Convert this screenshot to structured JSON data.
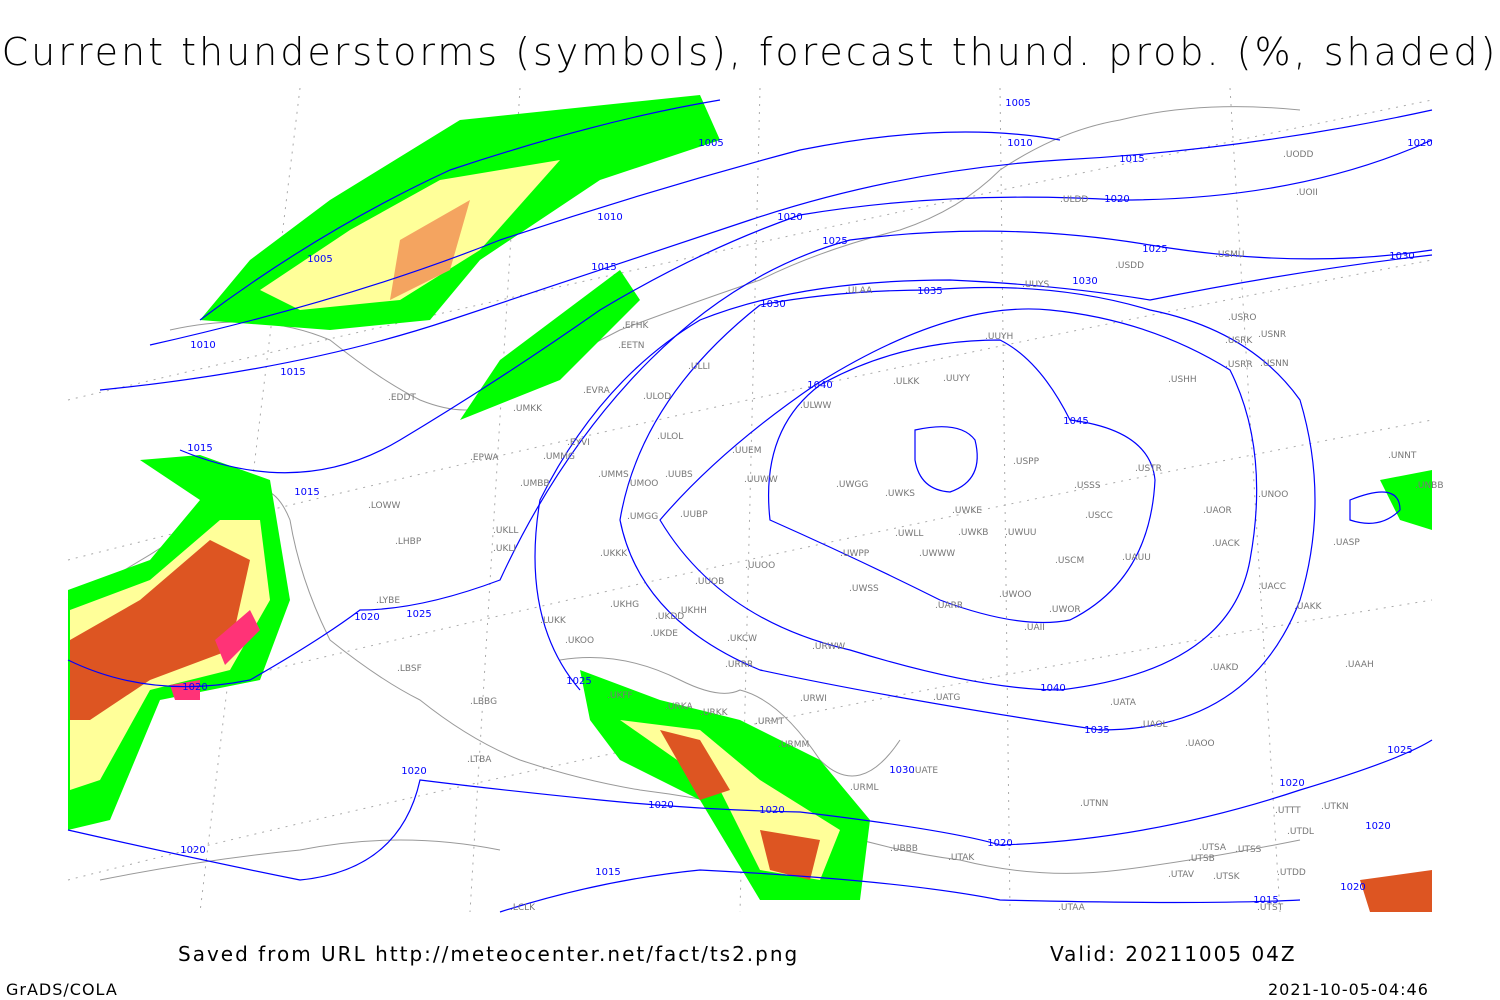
{
  "title": "Current thunderstorms (symbols), forecast thund. prob. (%, shaded)",
  "footer": {
    "source": "Saved from URL http://meteocenter.net/fact/ts2.png",
    "valid": "Valid: 20211005 04Z",
    "software": "GrADS/COLA",
    "timestamp": "2021-10-05-04:46"
  },
  "colors": {
    "isobar": "#0000ff",
    "coastline": "#999999",
    "prob_low": "#00ff00",
    "prob_mid": "#ffff99",
    "prob_high": "#f4a460",
    "prob_max": "#dd5522",
    "storm_symbol": "#ff3377"
  },
  "isobar_labels": [
    "1005",
    "1005",
    "1005",
    "1010",
    "1010",
    "1010",
    "1015",
    "1015",
    "1015",
    "1015",
    "1015",
    "1015",
    "1015",
    "1020",
    "1020",
    "1020",
    "1020",
    "1020",
    "1020",
    "1020",
    "1020",
    "1020",
    "1020",
    "1020",
    "1020",
    "1020",
    "1025",
    "1025",
    "1025",
    "1025",
    "1025",
    "1030",
    "1030",
    "1030",
    "1030",
    "1035",
    "1035",
    "1040",
    "1040",
    "1045"
  ],
  "stations": [
    "UUYS",
    "UUYH",
    "ULAA",
    "USDD",
    "USMU",
    "ULDD",
    "UODD",
    "UOII",
    "USRO",
    "USRK",
    "USNR",
    "USRR",
    "USNN",
    "USHH",
    "ULKK",
    "UUYY",
    "EFHK",
    "EETN",
    "ULLI",
    "EVRA",
    "ULOD",
    "EDDT",
    "UMKK",
    "EYVI",
    "ULOL",
    "UUEM",
    "EPWA",
    "UMMG",
    "UMMS",
    "UMOO",
    "UUBS",
    "UUWW",
    "UWGG",
    "UWKS",
    "USPP",
    "USTR",
    "USSS",
    "UWKE",
    "USCC",
    "UMBB",
    "LOWW",
    "UMGG",
    "UUBP",
    "UWLL",
    "UWKB",
    "UWUU",
    "UKLL",
    "UKLI",
    "LHBP",
    "UWPP",
    "UWWW",
    "USCM",
    "UAUU",
    "UACK",
    "UAOR",
    "UNOO",
    "UNNT",
    "UNBB",
    "UASP",
    "UKKK",
    "UUOO",
    "UUOB",
    "UWSS",
    "LYBE",
    "UKHG",
    "UKDD",
    "UKHH",
    "UARR",
    "UWOO",
    "UWOR",
    "UAII",
    "UACC",
    "UAKK",
    "LUKK",
    "UKOO",
    "UKDE",
    "UKCW",
    "URWW",
    "LBSF",
    "URRR",
    "UAKD",
    "UAAH",
    "UKFF",
    "LBBG",
    "URKA",
    "URKK",
    "URWI",
    "UATG",
    "UATA",
    "UAOL",
    "URMT",
    "URMM",
    "UATE",
    "UAOO",
    "LTBA",
    "URML",
    "UTNN",
    "UBBB",
    "UTAK",
    "UTSA",
    "UTSS",
    "UTSB",
    "UTDL",
    "UTTT",
    "UTKN",
    "UTAV",
    "UTSK",
    "UTDD",
    "UTAA",
    "UTST",
    "LCLK",
    "ULWW"
  ]
}
